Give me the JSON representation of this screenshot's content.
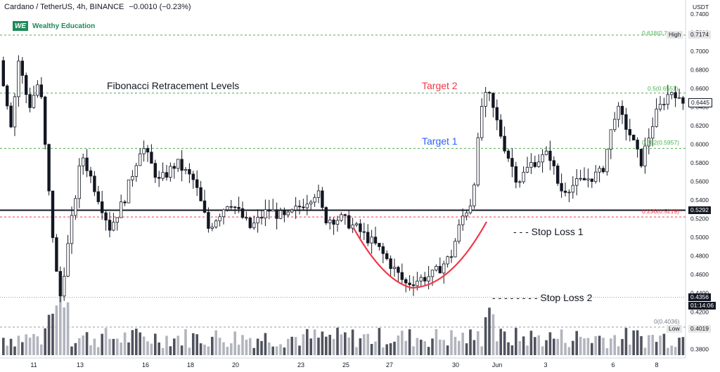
{
  "header": {
    "symbol": "Cardano / TetherUS, 4h, BINANCE",
    "change": "−0.0010 (−0.23%)"
  },
  "brand": {
    "logo_text": "WE",
    "name": "Wealthy Education"
  },
  "annotations": {
    "fib_title": "Fibonacci Retracement Levels",
    "target2": "Target 2",
    "target1": "Target 1",
    "stop_loss1": "- - -  Stop Loss 1",
    "stop_loss2": "- - - - - - - -  Stop Loss 2"
  },
  "fib_labels": {
    "l618": "0.618(0.7174)",
    "l5": "0.5(0.6551)",
    "l382": "0.382(0.5957)",
    "l236": "0.236(0.5219)",
    "l0": "0(0.4036)"
  },
  "price_axis": {
    "unit": "USDT",
    "high_label": "High",
    "high_value": "0.7174",
    "last_value": "0.6445",
    "line_value": "0.5292",
    "cursor_value": "0.4356",
    "countdown": "01:14:06",
    "low_label": "Low",
    "low_value": "0.4019"
  },
  "colors": {
    "up": "#ffffff",
    "down": "#131722",
    "fib_green": "#4caf50",
    "fib_red": "#f23645",
    "target2": "#f23645",
    "target1": "#2962ff",
    "cup": "#f23645"
  },
  "chart_data": {
    "type": "candlestick",
    "title": "Cardano / TetherUS, 4h, BINANCE",
    "ylabel": "USDT",
    "ylim": [
      0.37,
      0.75
    ],
    "y_ticks": [
      "0.7400",
      "0.7200",
      "0.7000",
      "0.6800",
      "0.6600",
      "0.6400",
      "0.6200",
      "0.6000",
      "0.5800",
      "0.5600",
      "0.5400",
      "0.5200",
      "0.5000",
      "0.4800",
      "0.4600",
      "0.4400",
      "0.4200",
      "0.4000",
      "0.3800"
    ],
    "x_ticks": [
      "11",
      "13",
      "16",
      "18",
      "20",
      "23",
      "25",
      "27",
      "30",
      "Jun",
      "3",
      "6",
      "8"
    ],
    "fib_levels": [
      {
        "ratio": 0.618,
        "price": 0.7174
      },
      {
        "ratio": 0.5,
        "price": 0.6551
      },
      {
        "ratio": 0.382,
        "price": 0.5957
      },
      {
        "ratio": 0.236,
        "price": 0.5219
      },
      {
        "ratio": 0,
        "price": 0.4036
      }
    ],
    "horizontal_line": 0.5292,
    "key_points": [
      {
        "x": "11",
        "price": 0.69
      },
      {
        "x": "12",
        "price": 0.43
      },
      {
        "x": "15",
        "price": 0.61
      },
      {
        "x": "25",
        "price": 0.52
      },
      {
        "x": "28",
        "price": 0.447
      },
      {
        "x": "31",
        "price": 0.69
      },
      {
        "x": "4",
        "price": 0.55
      },
      {
        "x": "8",
        "price": 0.67
      },
      {
        "x": "9",
        "price": 0.6445
      }
    ]
  }
}
